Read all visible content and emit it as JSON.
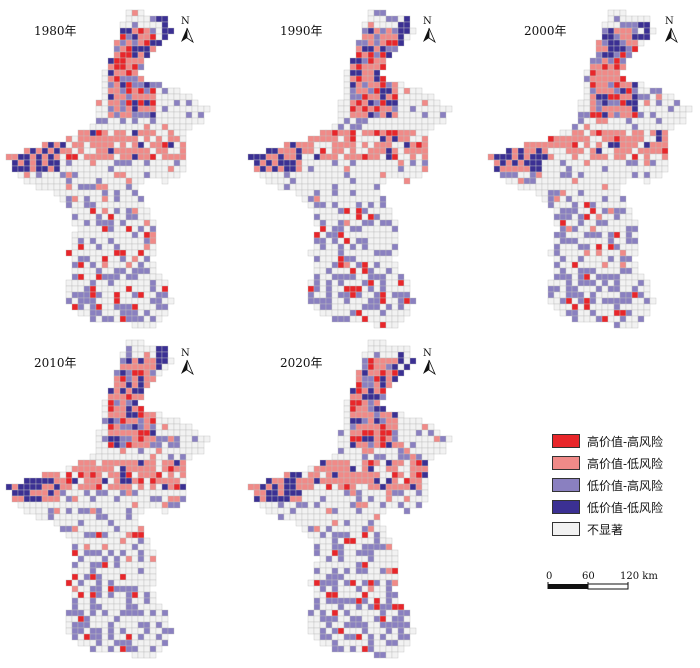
{
  "panels": [
    {
      "year": "1980年"
    },
    {
      "year": "1990年"
    },
    {
      "year": "2000年"
    },
    {
      "year": "2010年"
    },
    {
      "year": "2020年"
    }
  ],
  "north_arrow": {
    "letter": "N"
  },
  "legend": {
    "items": [
      {
        "label": "高价值-高风险",
        "color": "#e8262a"
      },
      {
        "label": "高价值-低风险",
        "color": "#f08a88"
      },
      {
        "label": "低价值-高风险",
        "color": "#8a80c0"
      },
      {
        "label": "低价值-低风险",
        "color": "#3b3093"
      },
      {
        "label": "不显著",
        "color": "#f2f2f2"
      }
    ]
  },
  "scale_bar": {
    "ticks": [
      "0",
      "60",
      "120 km"
    ]
  }
}
